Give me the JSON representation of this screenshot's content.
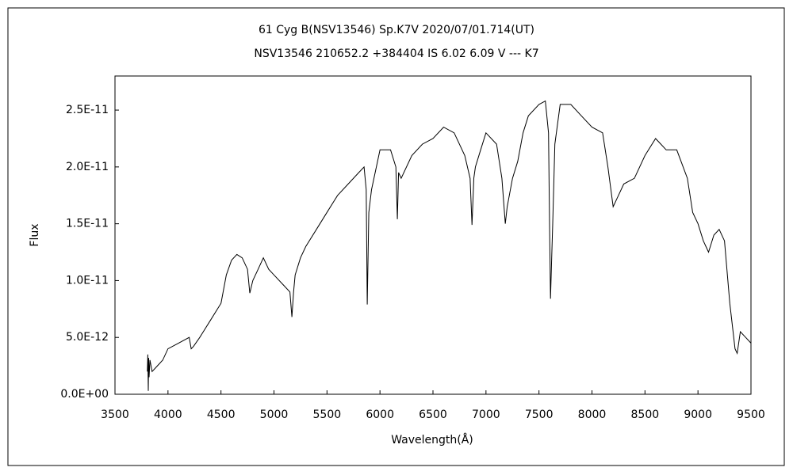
{
  "chart_data": {
    "type": "line",
    "title": "61 Cyg B(NSV13546)   Sp.K7V   2020/07/01.714(UT)",
    "subtitle": "NSV13546 210652.2 +384404 IS 6.02 6.09 V --- K7",
    "x_label": "Wavelength(Å)",
    "y_label": "Flux",
    "x": [
      3805,
      3810,
      3814,
      3818,
      3822,
      3830,
      3850,
      3900,
      3950,
      4000,
      4100,
      4200,
      4219,
      4240,
      4300,
      4400,
      4500,
      4550,
      4600,
      4650,
      4700,
      4750,
      4772,
      4800,
      4850,
      4900,
      4950,
      5000,
      5100,
      5150,
      5169,
      5185,
      5200,
      5250,
      5300,
      5400,
      5500,
      5600,
      5700,
      5800,
      5850,
      5870,
      5880,
      5895,
      5920,
      6000,
      6100,
      6150,
      6164,
      6175,
      6200,
      6300,
      6400,
      6500,
      6600,
      6700,
      6800,
      6850,
      6868,
      6885,
      6900,
      6950,
      7000,
      7100,
      7150,
      7182,
      7200,
      7250,
      7300,
      7350,
      7400,
      7500,
      7560,
      7590,
      7600,
      7609,
      7620,
      7630,
      7650,
      7700,
      7800,
      7900,
      8000,
      8100,
      8150,
      8200,
      8250,
      8300,
      8400,
      8500,
      8600,
      8650,
      8700,
      8800,
      8900,
      8950,
      9000,
      9050,
      9100,
      9150,
      9200,
      9250,
      9300,
      9350,
      9370,
      9400,
      9450,
      9500
    ],
    "series": [
      {
        "name": "Flux",
        "color": "#000000",
        "values": [
          2e-12,
          3.5e-12,
          3e-13,
          3.2e-12,
          1.5e-12,
          3e-12,
          2e-12,
          2.5e-12,
          3e-12,
          4e-12,
          4.5e-12,
          5e-12,
          4e-12,
          4.2e-12,
          5e-12,
          6.5e-12,
          8e-12,
          1.05e-11,
          1.18e-11,
          1.23e-11,
          1.2e-11,
          1.1e-11,
          8.9e-12,
          1e-11,
          1.1e-11,
          1.2e-11,
          1.1e-11,
          1.05e-11,
          9.5e-12,
          9e-12,
          6.8e-12,
          9e-12,
          1.05e-11,
          1.2e-11,
          1.3e-11,
          1.45e-11,
          1.6e-11,
          1.75e-11,
          1.85e-11,
          1.95e-11,
          2e-11,
          1.8e-11,
          7.9e-12,
          1.6e-11,
          1.8e-11,
          2.15e-11,
          2.15e-11,
          2e-11,
          1.54e-11,
          1.95e-11,
          1.9e-11,
          2.1e-11,
          2.2e-11,
          2.25e-11,
          2.35e-11,
          2.3e-11,
          2.1e-11,
          1.9e-11,
          1.49e-11,
          1.9e-11,
          2e-11,
          2.15e-11,
          2.3e-11,
          2.2e-11,
          1.9e-11,
          1.5e-11,
          1.65e-11,
          1.9e-11,
          2.05e-11,
          2.3e-11,
          2.45e-11,
          2.55e-11,
          2.58e-11,
          2.3e-11,
          1.5e-11,
          8.4e-12,
          1.2e-11,
          1.5e-11,
          2.2e-11,
          2.55e-11,
          2.55e-11,
          2.45e-11,
          2.35e-11,
          2.3e-11,
          2e-11,
          1.65e-11,
          1.75e-11,
          1.85e-11,
          1.9e-11,
          2.1e-11,
          2.25e-11,
          2.2e-11,
          2.15e-11,
          2.15e-11,
          1.9e-11,
          1.6e-11,
          1.5e-11,
          1.35e-11,
          1.25e-11,
          1.4e-11,
          1.45e-11,
          1.35e-11,
          8e-12,
          4e-12,
          3.6e-12,
          5.5e-12,
          5e-12,
          4.5e-12
        ]
      }
    ],
    "xlim": [
      3500,
      9500
    ],
    "xticks": [
      3500,
      4000,
      4500,
      5000,
      5500,
      6000,
      6500,
      7000,
      7500,
      8000,
      8500,
      9000,
      9500
    ],
    "ylim": [
      0,
      2.8e-11
    ],
    "yticks": [
      {
        "value": 0,
        "label": "0.0E+00"
      },
      {
        "value": 5e-12,
        "label": "5.0E-12"
      },
      {
        "value": 1e-11,
        "label": "1.0E-11"
      },
      {
        "value": 1.5e-11,
        "label": "1.5E-11"
      },
      {
        "value": 2e-11,
        "label": "2.0E-11"
      },
      {
        "value": 2.5e-11,
        "label": "2.5E-11"
      }
    ],
    "grid": false
  }
}
